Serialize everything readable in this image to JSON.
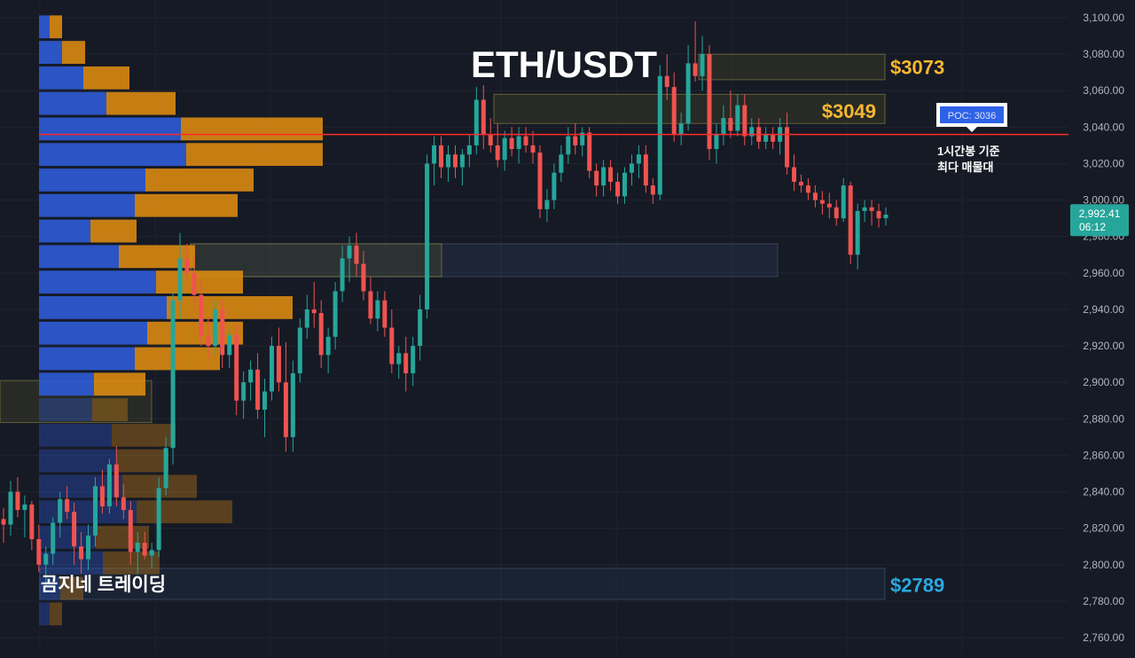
{
  "chart_data": {
    "type": "candlestick",
    "title": "ETH/USDT",
    "watermark": "곰지네 트레이딩",
    "ylim": [
      2755,
      3105
    ],
    "y_ticks": [
      "3,100.00",
      "3,080.00",
      "3,060.00",
      "3,040.00",
      "3,020.00",
      "3,000.00",
      "2,980.00",
      "2,960.00",
      "2,940.00",
      "2,920.00",
      "2,900.00",
      "2,880.00",
      "2,860.00",
      "2,840.00",
      "2,820.00",
      "2,800.00",
      "2,780.00",
      "2,760.00"
    ],
    "y_tick_values": [
      3100,
      3080,
      3060,
      3040,
      3020,
      3000,
      2980,
      2960,
      2940,
      2920,
      2900,
      2880,
      2860,
      2840,
      2820,
      2800,
      2780,
      2760
    ],
    "last_price": {
      "value": 2992.41,
      "label": "2,992.41",
      "countdown": "06:12",
      "color": "#26a69a"
    },
    "poc": {
      "value": 3036,
      "label": "POC: 3036",
      "note_line1": "1시간봉 기준",
      "note_line2": "최다 매물대",
      "color": "#ff2a2a"
    },
    "levels": [
      {
        "label": "$3073",
        "value": 3073,
        "color": "#f7b731"
      },
      {
        "label": "$3049",
        "value": 3049,
        "color": "#f7b731"
      },
      {
        "label": "$2789",
        "value": 2789,
        "color": "#29a9e0"
      }
    ],
    "zones": [
      {
        "low": 3066,
        "high": 3080,
        "kind": "supply"
      },
      {
        "low": 3042,
        "high": 3058,
        "kind": "supply"
      },
      {
        "low": 2958,
        "high": 2976,
        "kind": "neutral"
      },
      {
        "low": 2781,
        "high": 2798,
        "kind": "demand"
      },
      {
        "low": 2878,
        "high": 2901,
        "kind": "supply"
      }
    ],
    "volume_profile": [
      {
        "price": 3095,
        "buy": 6,
        "sell": 7
      },
      {
        "price": 3081,
        "buy": 13,
        "sell": 13
      },
      {
        "price": 3067,
        "buy": 25,
        "sell": 26
      },
      {
        "price": 3053,
        "buy": 38,
        "sell": 39
      },
      {
        "price": 3039,
        "buy": 80,
        "sell": 80
      },
      {
        "price": 3025,
        "buy": 83,
        "sell": 77
      },
      {
        "price": 3011,
        "buy": 60,
        "sell": 61
      },
      {
        "price": 2997,
        "buy": 54,
        "sell": 58
      },
      {
        "price": 2983,
        "buy": 29,
        "sell": 26
      },
      {
        "price": 2969,
        "buy": 45,
        "sell": 43
      },
      {
        "price": 2955,
        "buy": 66,
        "sell": 49
      },
      {
        "price": 2941,
        "buy": 72,
        "sell": 71
      },
      {
        "price": 2927,
        "buy": 61,
        "sell": 54
      },
      {
        "price": 2913,
        "buy": 54,
        "sell": 48
      },
      {
        "price": 2899,
        "buy": 31,
        "sell": 29
      },
      {
        "price": 2885,
        "buy": 30,
        "sell": 20
      },
      {
        "price": 2871,
        "buy": 41,
        "sell": 36
      },
      {
        "price": 2857,
        "buy": 44,
        "sell": 29
      },
      {
        "price": 2843,
        "buy": 47,
        "sell": 42
      },
      {
        "price": 2829,
        "buy": 55,
        "sell": 54
      },
      {
        "price": 2815,
        "buy": 32,
        "sell": 30
      },
      {
        "price": 2801,
        "buy": 36,
        "sell": 32
      },
      {
        "price": 2787,
        "buy": 12,
        "sell": 13
      },
      {
        "price": 2773,
        "buy": 6,
        "sell": 7
      }
    ],
    "candles": [
      [
        2825,
        2831,
        2812,
        2822
      ],
      [
        2822,
        2846,
        2816,
        2840
      ],
      [
        2840,
        2848,
        2826,
        2830
      ],
      [
        2830,
        2838,
        2815,
        2833
      ],
      [
        2833,
        2835,
        2808,
        2814
      ],
      [
        2814,
        2822,
        2796,
        2800
      ],
      [
        2800,
        2810,
        2788,
        2806
      ],
      [
        2806,
        2826,
        2800,
        2823
      ],
      [
        2823,
        2840,
        2815,
        2836
      ],
      [
        2836,
        2843,
        2825,
        2829
      ],
      [
        2829,
        2834,
        2800,
        2810
      ],
      [
        2810,
        2818,
        2795,
        2803
      ],
      [
        2803,
        2822,
        2797,
        2816
      ],
      [
        2816,
        2848,
        2810,
        2843
      ],
      [
        2843,
        2852,
        2828,
        2832
      ],
      [
        2832,
        2858,
        2828,
        2855
      ],
      [
        2855,
        2865,
        2832,
        2837
      ],
      [
        2837,
        2844,
        2825,
        2830
      ],
      [
        2830,
        2835,
        2800,
        2807
      ],
      [
        2807,
        2818,
        2795,
        2812
      ],
      [
        2812,
        2818,
        2803,
        2805
      ],
      [
        2805,
        2812,
        2798,
        2808
      ],
      [
        2808,
        2848,
        2804,
        2842
      ],
      [
        2842,
        2870,
        2838,
        2864
      ],
      [
        2864,
        2950,
        2855,
        2945
      ],
      [
        2945,
        2982,
        2935,
        2968
      ],
      [
        2968,
        2976,
        2955,
        2960
      ],
      [
        2960,
        2970,
        2942,
        2948
      ],
      [
        2948,
        2956,
        2920,
        2925
      ],
      [
        2925,
        2936,
        2912,
        2920
      ],
      [
        2920,
        2945,
        2915,
        2940
      ],
      [
        2940,
        2945,
        2908,
        2915
      ],
      [
        2915,
        2930,
        2908,
        2926
      ],
      [
        2926,
        2932,
        2882,
        2890
      ],
      [
        2890,
        2906,
        2880,
        2900
      ],
      [
        2900,
        2912,
        2890,
        2907
      ],
      [
        2907,
        2916,
        2880,
        2885
      ],
      [
        2885,
        2902,
        2870,
        2895
      ],
      [
        2895,
        2925,
        2890,
        2920
      ],
      [
        2920,
        2930,
        2895,
        2900
      ],
      [
        2900,
        2922,
        2862,
        2870
      ],
      [
        2870,
        2912,
        2862,
        2905
      ],
      [
        2905,
        2935,
        2900,
        2930
      ],
      [
        2930,
        2948,
        2924,
        2940
      ],
      [
        2940,
        2955,
        2930,
        2938
      ],
      [
        2938,
        2945,
        2908,
        2915
      ],
      [
        2915,
        2930,
        2905,
        2925
      ],
      [
        2925,
        2955,
        2918,
        2950
      ],
      [
        2950,
        2975,
        2944,
        2968
      ],
      [
        2968,
        2980,
        2955,
        2975
      ],
      [
        2975,
        2982,
        2958,
        2965
      ],
      [
        2965,
        2972,
        2945,
        2950
      ],
      [
        2950,
        2958,
        2932,
        2935
      ],
      [
        2935,
        2950,
        2928,
        2945
      ],
      [
        2945,
        2950,
        2925,
        2930
      ],
      [
        2930,
        2940,
        2905,
        2910
      ],
      [
        2910,
        2920,
        2902,
        2916
      ],
      [
        2916,
        2925,
        2895,
        2905
      ],
      [
        2905,
        2925,
        2898,
        2920
      ],
      [
        2920,
        2948,
        2912,
        2940
      ],
      [
        2940,
        3025,
        2935,
        3020
      ],
      [
        3020,
        3035,
        3008,
        3030
      ],
      [
        3030,
        3035,
        3012,
        3018
      ],
      [
        3018,
        3030,
        3010,
        3025
      ],
      [
        3025,
        3030,
        3012,
        3018
      ],
      [
        3018,
        3028,
        3008,
        3025
      ],
      [
        3025,
        3036,
        3018,
        3030
      ],
      [
        3030,
        3062,
        3025,
        3055
      ],
      [
        3055,
        3063,
        3028,
        3036
      ],
      [
        3036,
        3045,
        3026,
        3030
      ],
      [
        3030,
        3042,
        3018,
        3022
      ],
      [
        3022,
        3038,
        3016,
        3034
      ],
      [
        3034,
        3040,
        3024,
        3028
      ],
      [
        3028,
        3040,
        3020,
        3035
      ],
      [
        3035,
        3040,
        3026,
        3030
      ],
      [
        3030,
        3038,
        3020,
        3026
      ],
      [
        3026,
        3030,
        2990,
        2995
      ],
      [
        2995,
        3006,
        2988,
        3000
      ],
      [
        3000,
        3020,
        2995,
        3015
      ],
      [
        3015,
        3030,
        3010,
        3025
      ],
      [
        3025,
        3040,
        3020,
        3035
      ],
      [
        3035,
        3042,
        3025,
        3030
      ],
      [
        3030,
        3040,
        3024,
        3037
      ],
      [
        3037,
        3040,
        3012,
        3016
      ],
      [
        3016,
        3020,
        3002,
        3008
      ],
      [
        3008,
        3022,
        3002,
        3018
      ],
      [
        3018,
        3022,
        3005,
        3010
      ],
      [
        3010,
        3015,
        2998,
        3002
      ],
      [
        3002,
        3018,
        2998,
        3015
      ],
      [
        3015,
        3025,
        3008,
        3020
      ],
      [
        3020,
        3030,
        3012,
        3025
      ],
      [
        3025,
        3030,
        3004,
        3008
      ],
      [
        3008,
        3012,
        2998,
        3003
      ],
      [
        3003,
        3074,
        3000,
        3068
      ],
      [
        3068,
        3080,
        3055,
        3062
      ],
      [
        3062,
        3070,
        3032,
        3036
      ],
      [
        3036,
        3048,
        3030,
        3042
      ],
      [
        3042,
        3085,
        3038,
        3075
      ],
      [
        3075,
        3098,
        3065,
        3068
      ],
      [
        3068,
        3090,
        3060,
        3080
      ],
      [
        3080,
        3085,
        3022,
        3028
      ],
      [
        3028,
        3042,
        3020,
        3036
      ],
      [
        3036,
        3052,
        3030,
        3045
      ],
      [
        3045,
        3060,
        3034,
        3038
      ],
      [
        3038,
        3058,
        3035,
        3052
      ],
      [
        3052,
        3058,
        3030,
        3035
      ],
      [
        3035,
        3045,
        3030,
        3040
      ],
      [
        3040,
        3045,
        3028,
        3032
      ],
      [
        3032,
        3040,
        3028,
        3036
      ],
      [
        3036,
        3040,
        3028,
        3032
      ],
      [
        3032,
        3045,
        3025,
        3040
      ],
      [
        3040,
        3048,
        3014,
        3018
      ],
      [
        3018,
        3025,
        3005,
        3010
      ],
      [
        3010,
        3014,
        3004,
        3008
      ],
      [
        3008,
        3012,
        3000,
        3004
      ],
      [
        3004,
        3008,
        2996,
        3000
      ],
      [
        3000,
        3005,
        2992,
        2998
      ],
      [
        2998,
        3004,
        2990,
        2996
      ],
      [
        2996,
        3000,
        2986,
        2990
      ],
      [
        2990,
        3012,
        2988,
        3008
      ],
      [
        3008,
        3010,
        2965,
        2970
      ],
      [
        2970,
        2998,
        2962,
        2994
      ],
      [
        2994,
        3000,
        2988,
        2996
      ],
      [
        2996,
        3000,
        2986,
        2994
      ],
      [
        2994,
        2998,
        2985,
        2990
      ],
      [
        2990,
        2996,
        2986,
        2992
      ]
    ]
  }
}
